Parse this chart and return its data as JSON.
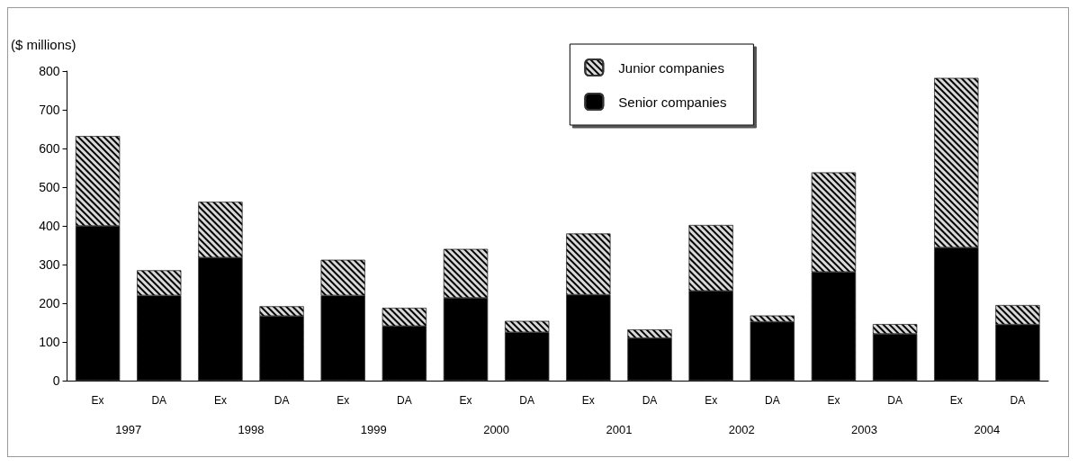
{
  "chart_data": {
    "type": "bar",
    "stacked": true,
    "ylabel": "($ millions)",
    "categories": [
      "Ex",
      "DA",
      "Ex",
      "DA",
      "Ex",
      "DA",
      "Ex",
      "DA",
      "Ex",
      "DA",
      "Ex",
      "DA",
      "Ex",
      "DA",
      "Ex",
      "DA"
    ],
    "series": [
      {
        "name": "Senior companies",
        "color": "#000000",
        "values": [
          400,
          220,
          318,
          167,
          220,
          141,
          214,
          125,
          222,
          110,
          232,
          152,
          281,
          121,
          344,
          145
        ]
      },
      {
        "name": "Junior companies",
        "color": "#d9d9d9",
        "values": [
          232,
          65,
          144,
          25,
          92,
          47,
          126,
          29,
          158,
          22,
          170,
          16,
          257,
          25,
          438,
          50
        ]
      }
    ],
    "annotations": [
      "1997",
      "1998",
      "1999",
      "2000",
      "2001",
      "2002",
      "2003",
      "2004"
    ],
    "ylim": [
      0,
      800
    ],
    "yticks": [
      0,
      100,
      200,
      300,
      400,
      500,
      600,
      700,
      800
    ],
    "grid": false,
    "legend": "top right"
  }
}
